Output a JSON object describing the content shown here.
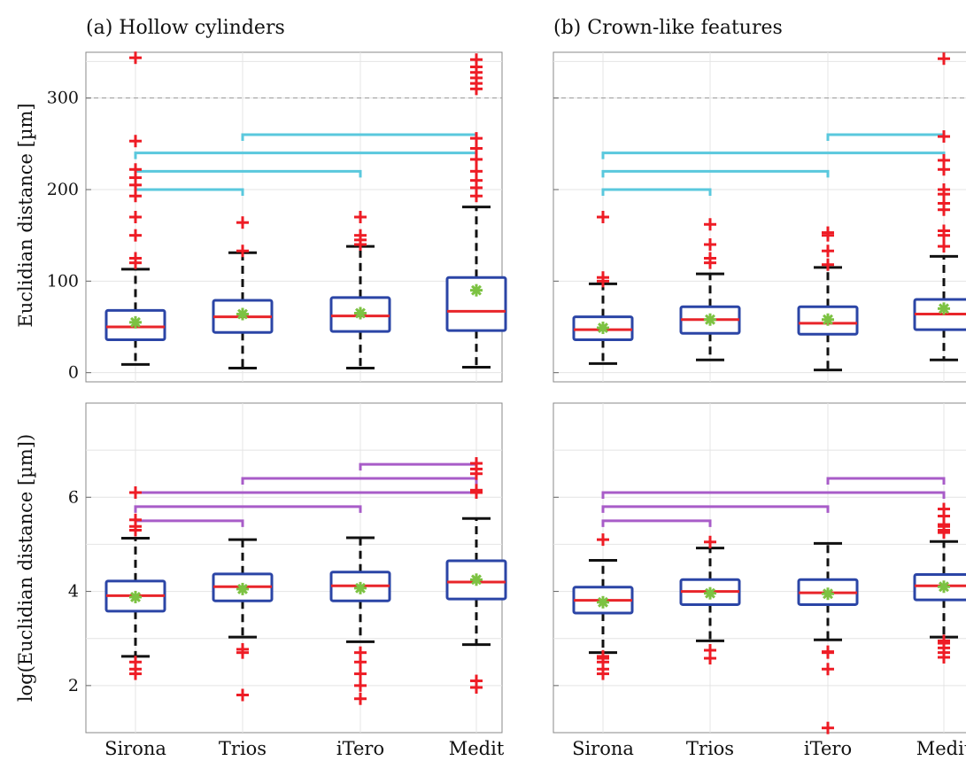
{
  "colors": {
    "box": "#2b45a6",
    "median": "#e8252a",
    "mean": "#7cc242",
    "outlier": "#ee1c25",
    "whisker": "#111111",
    "bracket_top": "#5ac8dd",
    "bracket_bottom": "#a85cc8",
    "grid": "#e4e4e4",
    "threshold": "#999999"
  },
  "chart_data": [
    {
      "type": "box",
      "panel": "top-left",
      "title": "(a) Hollow cylinders",
      "ylabel": "Euclidian distance [µm]",
      "ylim": [
        -10,
        350
      ],
      "yticks": [
        0,
        100,
        200,
        300
      ],
      "threshold_line": 300,
      "grid": true,
      "categories": [
        "Sirona",
        "Trios",
        "iTero",
        "Medit"
      ],
      "boxes": [
        {
          "category": "Sirona",
          "whisker_low": 9,
          "q1": 36,
          "median": 50,
          "q3": 68,
          "whisker_high": 113,
          "mean": 55,
          "outliers": [
            120,
            125,
            150,
            170,
            193,
            205,
            213,
            222,
            253,
            344
          ]
        },
        {
          "category": "Trios",
          "whisker_low": 5,
          "q1": 44,
          "median": 61,
          "q3": 79,
          "whisker_high": 131,
          "mean": 64,
          "outliers": [
            133,
            164
          ]
        },
        {
          "category": "iTero",
          "whisker_low": 5,
          "q1": 45,
          "median": 62,
          "q3": 82,
          "whisker_high": 138,
          "mean": 65,
          "outliers": [
            140,
            145,
            150,
            170
          ]
        },
        {
          "category": "Medit",
          "whisker_low": 6,
          "q1": 46,
          "median": 67,
          "q3": 104,
          "whisker_high": 181,
          "mean": 90,
          "outliers": [
            193,
            202,
            210,
            220,
            233,
            245,
            256,
            310,
            316,
            322,
            328,
            334,
            342
          ]
        }
      ],
      "brackets": [
        {
          "from": "Sirona",
          "to": "Trios",
          "y": 200
        },
        {
          "from": "Sirona",
          "to": "iTero",
          "y": 220
        },
        {
          "from": "Sirona",
          "to": "Medit",
          "y": 240
        },
        {
          "from": "Trios",
          "to": "Medit",
          "y": 260
        }
      ]
    },
    {
      "type": "box",
      "panel": "top-right",
      "title": "(b) Crown-like features",
      "ylabel": "",
      "ylim": [
        -10,
        350
      ],
      "yticks": [
        0,
        100,
        200,
        300
      ],
      "threshold_line": 300,
      "grid": true,
      "categories": [
        "Sirona",
        "Trios",
        "iTero",
        "Medit"
      ],
      "boxes": [
        {
          "category": "Sirona",
          "whisker_low": 10,
          "q1": 36,
          "median": 47,
          "q3": 61,
          "whisker_high": 97,
          "mean": 49,
          "outliers": [
            100,
            104,
            170
          ]
        },
        {
          "category": "Trios",
          "whisker_low": 14,
          "q1": 43,
          "median": 58,
          "q3": 72,
          "whisker_high": 108,
          "mean": 58,
          "outliers": [
            120,
            125,
            140,
            162
          ]
        },
        {
          "category": "iTero",
          "whisker_low": 3,
          "q1": 42,
          "median": 54,
          "q3": 72,
          "whisker_high": 115,
          "mean": 58,
          "outliers": [
            118,
            133,
            150,
            153
          ]
        },
        {
          "category": "Medit",
          "whisker_low": 14,
          "q1": 47,
          "median": 64,
          "q3": 80,
          "whisker_high": 127,
          "mean": 70,
          "outliers": [
            138,
            150,
            155,
            178,
            185,
            195,
            200,
            222,
            232,
            258,
            343
          ]
        }
      ],
      "brackets": [
        {
          "from": "Sirona",
          "to": "Trios",
          "y": 200
        },
        {
          "from": "Sirona",
          "to": "iTero",
          "y": 220
        },
        {
          "from": "Sirona",
          "to": "Medit",
          "y": 240
        },
        {
          "from": "iTero",
          "to": "Medit",
          "y": 260
        }
      ]
    },
    {
      "type": "box",
      "panel": "bottom-left",
      "title": "",
      "ylabel": "log(Euclidian distance [µm])",
      "ylim": [
        1,
        8
      ],
      "yticks": [
        2,
        4,
        6
      ],
      "grid": true,
      "categories": [
        "Sirona",
        "Trios",
        "iTero",
        "Medit"
      ],
      "boxes": [
        {
          "category": "Sirona",
          "whisker_low": 2.62,
          "q1": 3.58,
          "median": 3.91,
          "q3": 4.22,
          "whisker_high": 5.13,
          "mean": 3.88,
          "outliers": [
            2.25,
            2.35,
            2.5,
            5.3,
            5.38,
            5.52,
            6.1
          ]
        },
        {
          "category": "Trios",
          "whisker_low": 3.03,
          "q1": 3.8,
          "median": 4.1,
          "q3": 4.37,
          "whisker_high": 5.1,
          "mean": 4.05,
          "outliers": [
            1.8,
            2.7,
            2.77
          ]
        },
        {
          "category": "iTero",
          "whisker_low": 2.93,
          "q1": 3.8,
          "median": 4.12,
          "q3": 4.41,
          "whisker_high": 5.14,
          "mean": 4.07,
          "outliers": [
            1.72,
            2.0,
            2.25,
            2.5,
            2.7
          ]
        },
        {
          "category": "Medit",
          "whisker_low": 2.87,
          "q1": 3.84,
          "median": 4.2,
          "q3": 4.65,
          "whisker_high": 5.55,
          "mean": 4.25,
          "outliers": [
            1.96,
            2.1,
            6.1,
            6.15,
            6.5,
            6.6,
            6.72
          ]
        }
      ],
      "brackets": [
        {
          "from": "Sirona",
          "to": "Trios",
          "y": 5.5
        },
        {
          "from": "Sirona",
          "to": "iTero",
          "y": 5.8
        },
        {
          "from": "Sirona",
          "to": "Medit",
          "y": 6.1
        },
        {
          "from": "Trios",
          "to": "Medit",
          "y": 6.4
        },
        {
          "from": "iTero",
          "to": "Medit",
          "y": 6.7
        }
      ]
    },
    {
      "type": "box",
      "panel": "bottom-right",
      "title": "",
      "ylabel": "",
      "ylim": [
        1,
        8
      ],
      "yticks": [
        2,
        4,
        6
      ],
      "grid": true,
      "categories": [
        "Sirona",
        "Trios",
        "iTero",
        "Medit"
      ],
      "boxes": [
        {
          "category": "Sirona",
          "whisker_low": 2.7,
          "q1": 3.54,
          "median": 3.81,
          "q3": 4.09,
          "whisker_high": 4.66,
          "mean": 3.77,
          "outliers": [
            2.25,
            2.35,
            2.5,
            2.58,
            2.62,
            5.1
          ]
        },
        {
          "category": "Trios",
          "whisker_low": 2.95,
          "q1": 3.72,
          "median": 4.0,
          "q3": 4.25,
          "whisker_high": 4.92,
          "mean": 3.96,
          "outliers": [
            2.58,
            2.75,
            5.05
          ]
        },
        {
          "category": "iTero",
          "whisker_low": 2.97,
          "q1": 3.72,
          "median": 3.97,
          "q3": 4.25,
          "whisker_high": 5.02,
          "mean": 3.95,
          "outliers": [
            1.1,
            2.35,
            2.7,
            2.72
          ]
        },
        {
          "category": "Medit",
          "whisker_low": 3.03,
          "q1": 3.82,
          "median": 4.12,
          "q3": 4.36,
          "whisker_high": 5.06,
          "mean": 4.1,
          "outliers": [
            2.6,
            2.7,
            2.8,
            2.9,
            2.95,
            5.25,
            5.3,
            5.38,
            5.42,
            5.6,
            5.75
          ]
        }
      ],
      "brackets": [
        {
          "from": "Sirona",
          "to": "Trios",
          "y": 5.5
        },
        {
          "from": "Sirona",
          "to": "iTero",
          "y": 5.8
        },
        {
          "from": "Sirona",
          "to": "Medit",
          "y": 6.1
        },
        {
          "from": "iTero",
          "to": "Medit",
          "y": 6.4
        }
      ]
    }
  ]
}
